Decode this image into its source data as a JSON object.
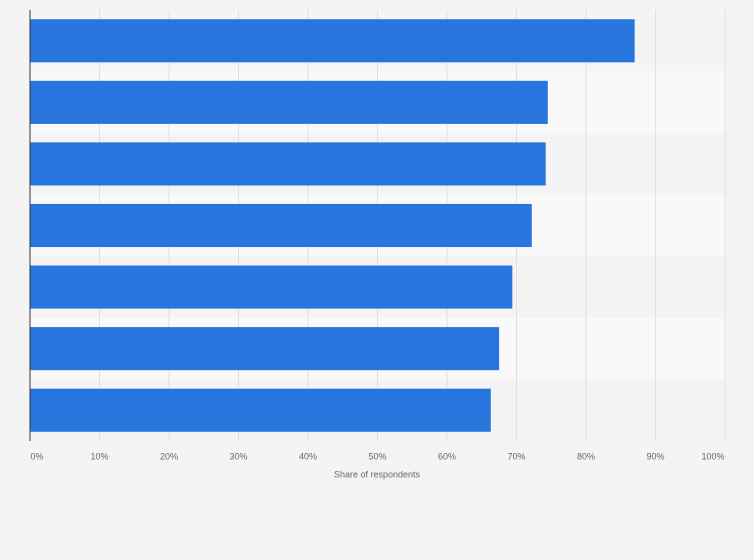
{
  "chart_data": {
    "type": "bar",
    "orientation": "horizontal",
    "categories": [
      null,
      null,
      null,
      null,
      null,
      null,
      null
    ],
    "values": [
      87,
      74.5,
      74.2,
      72.2,
      69.4,
      67.5,
      66.3
    ],
    "color": "#2876dd",
    "xlim": [
      0,
      100
    ],
    "xticks": [
      {
        "value": 0,
        "label": "0%"
      },
      {
        "value": 10,
        "label": "10%"
      },
      {
        "value": 20,
        "label": "20%"
      },
      {
        "value": 30,
        "label": "30%"
      },
      {
        "value": 40,
        "label": "40%"
      },
      {
        "value": 50,
        "label": "50%"
      },
      {
        "value": 60,
        "label": "60%"
      },
      {
        "value": 70,
        "label": "70%"
      },
      {
        "value": 80,
        "label": "80%"
      },
      {
        "value": 90,
        "label": "90%"
      },
      {
        "value": 100,
        "label": "100%"
      }
    ],
    "x_label": "Share of respondents",
    "grid": true
  }
}
